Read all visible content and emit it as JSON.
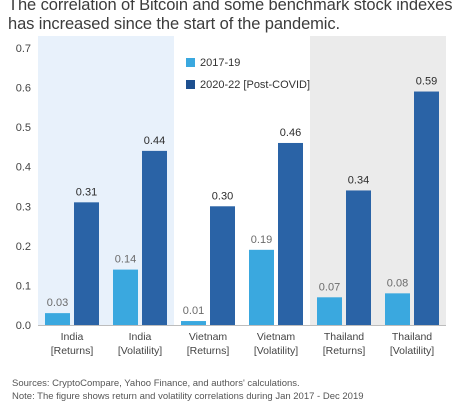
{
  "title": "The correlation of Bitcoin and some benchmark stock indexes has increased since the start of the pandemic.",
  "footnotes": {
    "sources": "Sources: CryptoCompare, Yahoo Finance, and authors' calculations.",
    "note": "Note: The figure shows return and volatility correlations during Jan 2017 - Dec 2019"
  },
  "colors": {
    "series_2017": "#3aa8df",
    "series_2020": "#2a63a6",
    "legend_2020": "#1d4f8f",
    "band_india": "#e8f1fb",
    "band_thailand": "#ebebeb",
    "label_light": "#6b6b6b",
    "label_dark": "#2b2b2b"
  },
  "chart_data": {
    "type": "bar",
    "title": "The correlation of Bitcoin and some benchmark stock indexes has increased since the start of the pandemic.",
    "categories": [
      [
        "India",
        "[Returns]"
      ],
      [
        "India",
        "[Volatility]"
      ],
      [
        "Vietnam",
        "[Returns]"
      ],
      [
        "Vietnam",
        "[Volatility]"
      ],
      [
        "Thailand",
        "[Returns]"
      ],
      [
        "Thailand",
        "[Volatility]"
      ]
    ],
    "series": [
      {
        "name": "2017-19",
        "values": [
          0.03,
          0.14,
          0.01,
          0.19,
          0.07,
          0.08
        ]
      },
      {
        "name": "2020-22 [Post-COVID]",
        "values": [
          0.31,
          0.44,
          0.3,
          0.46,
          0.34,
          0.59
        ]
      }
    ],
    "data_labels": [
      [
        "0.03",
        "0.14",
        "0.01",
        "0.19",
        "0.07",
        "0.08"
      ],
      [
        "0.31",
        "0.44",
        "0.30",
        "0.46",
        "0.34",
        "0.59"
      ]
    ],
    "ylim": [
      0,
      0.7
    ],
    "yticks": [
      "0.0",
      "0.1",
      "0.2",
      "0.3",
      "0.4",
      "0.5",
      "0.6",
      "0.7"
    ],
    "xlabel": "",
    "ylabel": "",
    "grid": false,
    "legend_position": "top-center",
    "background_bands": [
      {
        "country": "India",
        "category_range": [
          0,
          1
        ],
        "color": "#e8f1fb"
      },
      {
        "country": "Thailand",
        "category_range": [
          4,
          5
        ],
        "color": "#ebebeb"
      }
    ]
  }
}
